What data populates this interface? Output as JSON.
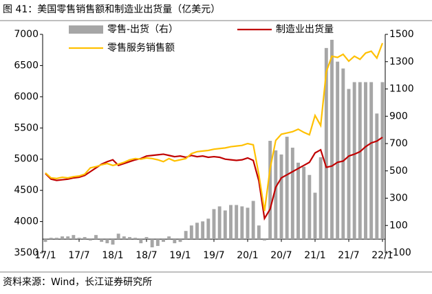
{
  "title": "图 41：美国零售销售额和制造业出货量（亿美元）",
  "source": "资料来源：Wind，长江证券研究所",
  "chart_data": {
    "type": "combo",
    "categories": [
      "17/1",
      null,
      null,
      null,
      null,
      null,
      "17/7",
      null,
      null,
      null,
      null,
      null,
      "18/1",
      null,
      null,
      null,
      null,
      null,
      "18/7",
      null,
      null,
      null,
      null,
      null,
      "19/1",
      null,
      null,
      null,
      null,
      null,
      "19/7",
      null,
      null,
      null,
      null,
      null,
      "20/1",
      null,
      null,
      null,
      null,
      null,
      "20/7",
      null,
      null,
      null,
      null,
      null,
      "21/1",
      null,
      null,
      null,
      null,
      null,
      "21/7",
      null,
      null,
      null,
      null,
      null,
      "22/1"
    ],
    "ylim": [
      3500,
      7000
    ],
    "yticks": [
      3500,
      4000,
      4500,
      5000,
      5500,
      6000,
      6500,
      7000
    ],
    "y2lim": [
      -100,
      1500
    ],
    "y2ticks": [
      -100,
      100,
      300,
      500,
      700,
      900,
      1100,
      1300,
      1500
    ],
    "series": [
      {
        "name": "零售-出货（右）",
        "type": "bar",
        "axis": "y2",
        "color": "#a6a6a6",
        "values": [
          -20,
          10,
          10,
          20,
          20,
          30,
          10,
          15,
          -10,
          30,
          -20,
          -30,
          -40,
          40,
          20,
          15,
          10,
          -30,
          15,
          -60,
          -50,
          -20,
          20,
          -30,
          -20,
          60,
          100,
          120,
          130,
          150,
          220,
          240,
          210,
          250,
          250,
          240,
          230,
          280,
          100,
          -10,
          720,
          650,
          620,
          750,
          670,
          560,
          530,
          470,
          340,
          600,
          1400,
          1460,
          1300,
          1250,
          1100,
          1150,
          1150,
          1150,
          1150,
          920,
          1150
        ]
      },
      {
        "name": "制造业出货量",
        "type": "line",
        "color": "#c00000",
        "values": [
          4770,
          4680,
          4660,
          4670,
          4680,
          4700,
          4710,
          4740,
          4800,
          4860,
          4920,
          4960,
          4990,
          4900,
          4930,
          4960,
          4990,
          5010,
          5050,
          5060,
          5070,
          5080,
          5060,
          5040,
          5050,
          5030,
          5060,
          5040,
          5050,
          5030,
          5040,
          5030,
          5000,
          4990,
          4980,
          4990,
          5020,
          4980,
          4650,
          4050,
          4200,
          4550,
          4700,
          4750,
          4800,
          4850,
          4900,
          4950,
          5100,
          5150,
          4870,
          4890,
          4950,
          4970,
          5050,
          5080,
          5120,
          5200,
          5260,
          5290,
          5350
        ]
      },
      {
        "name": "零售服务销售额",
        "type": "line",
        "color": "#ffc000",
        "values": [
          4780,
          4700,
          4690,
          4710,
          4700,
          4720,
          4730,
          4760,
          4860,
          4880,
          4910,
          4930,
          4900,
          4920,
          4950,
          4990,
          5010,
          5000,
          5020,
          5010,
          4990,
          4960,
          5010,
          4970,
          4990,
          5010,
          5090,
          5120,
          5130,
          5140,
          5160,
          5170,
          5180,
          5200,
          5210,
          5220,
          5250,
          5230,
          4750,
          4170,
          4850,
          5300,
          5400,
          5420,
          5440,
          5480,
          5430,
          5390,
          5700,
          5540,
          6400,
          6650,
          6630,
          6680,
          6570,
          6650,
          6600,
          6700,
          6730,
          6620,
          6860
        ]
      }
    ]
  }
}
